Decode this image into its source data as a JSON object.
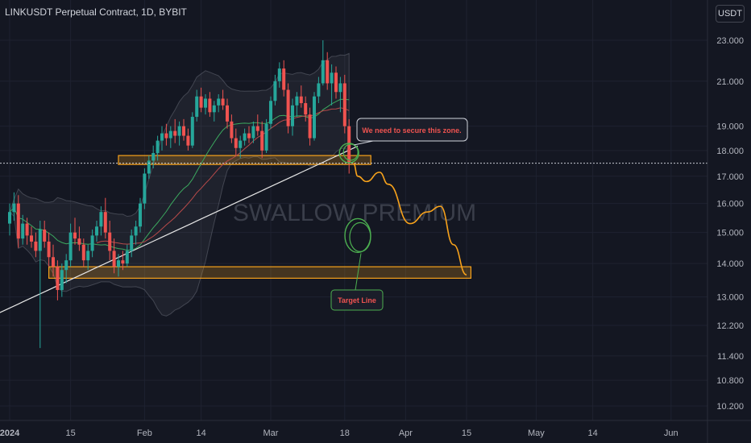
{
  "header": {
    "symbol_title": "LINKUSDT Perpetual Contract, 1D, BYBIT",
    "currency_button": "USDT"
  },
  "watermark": "SWALLOW PREMIUM",
  "annotations": {
    "zone_note": "We need to secure this zone.",
    "target_note": "Target Line"
  },
  "colors": {
    "background": "#141722",
    "up_candle": "#26a69a",
    "down_candle": "#ef5350",
    "zone_border": "#f7a21b",
    "projection": "#f7a21b",
    "ma_fast": "#3ca95f",
    "ma_mid": "#b94a4a",
    "ma_slow": "#e6e6e6",
    "circle": "#4caf50",
    "note_text": "#ef5350"
  },
  "chart_data": {
    "type": "candlestick",
    "title": "LINKUSDT Perpetual Contract, 1D, BYBIT",
    "timeframe": "1D",
    "exchange": "BYBIT",
    "y_axis_ticks": [
      23.0,
      21.0,
      19.0,
      18.0,
      17.0,
      16.0,
      15.0,
      14.0,
      13.0,
      12.2,
      11.4,
      10.8,
      10.2
    ],
    "y_tick_labels": [
      "23.000",
      "21.000",
      "19.000",
      "18.000",
      "17.000",
      "16.000",
      "15.000",
      "14.000",
      "13.000",
      "12.200",
      "11.400",
      "10.800",
      "10.200"
    ],
    "y_scale": "log",
    "ylim": [
      9.85,
      24.2
    ],
    "x_tick_labels": [
      "2024",
      "15",
      "Feb",
      "14",
      "Mar",
      "18",
      "Apr",
      "15",
      "May",
      "14",
      "Jun"
    ],
    "x_tick_dates": [
      "2024-01-01",
      "2024-01-15",
      "2024-02-01",
      "2024-02-14",
      "2024-03-01",
      "2024-03-18",
      "2024-04-01",
      "2024-04-15",
      "2024-05-01",
      "2024-05-14",
      "2024-06-01"
    ],
    "xlim": [
      "2024-01-01",
      "2024-06-01"
    ],
    "current_price": 17.5,
    "current_price_label": "17.500",
    "zones": [
      {
        "name": "resistance-zone",
        "from": "2024-01-26",
        "to": "2024-03-24",
        "low": 17.45,
        "high": 17.8
      },
      {
        "name": "target-zone",
        "from": "2024-01-10",
        "to": "2024-04-16",
        "low": 13.55,
        "high": 13.9
      }
    ],
    "projection_path": [
      {
        "date": "2024-03-20",
        "price": 17.5
      },
      {
        "date": "2024-03-21",
        "price": 17.0
      },
      {
        "date": "2024-03-23",
        "price": 16.8
      },
      {
        "date": "2024-03-26",
        "price": 17.15
      },
      {
        "date": "2024-03-28",
        "price": 16.7
      },
      {
        "date": "2024-04-02",
        "price": 15.3
      },
      {
        "date": "2024-04-06",
        "price": 15.7
      },
      {
        "date": "2024-04-09",
        "price": 15.9
      },
      {
        "date": "2024-04-12",
        "price": 14.6
      },
      {
        "date": "2024-04-15",
        "price": 13.65
      }
    ],
    "candles": [
      [
        "2024-01-01",
        15.3,
        16.0,
        14.9,
        15.7
      ],
      [
        "2024-01-02",
        15.7,
        16.4,
        15.4,
        16.0
      ],
      [
        "2024-01-03",
        16.0,
        16.3,
        14.5,
        14.8
      ],
      [
        "2024-01-04",
        14.8,
        15.6,
        14.6,
        15.3
      ],
      [
        "2024-01-05",
        15.3,
        15.5,
        14.6,
        14.9
      ],
      [
        "2024-01-06",
        14.9,
        15.2,
        14.5,
        14.7
      ],
      [
        "2024-01-07",
        14.7,
        15.0,
        14.2,
        14.4
      ],
      [
        "2024-01-08",
        14.4,
        15.4,
        11.6,
        15.1
      ],
      [
        "2024-01-09",
        15.1,
        15.4,
        14.5,
        14.7
      ],
      [
        "2024-01-10",
        14.7,
        15.0,
        13.9,
        14.2
      ],
      [
        "2024-01-11",
        14.2,
        14.6,
        13.6,
        13.9
      ],
      [
        "2024-01-12",
        13.9,
        14.1,
        12.9,
        13.2
      ],
      [
        "2024-01-13",
        13.2,
        14.0,
        13.0,
        13.8
      ],
      [
        "2024-01-14",
        13.8,
        14.3,
        13.4,
        14.1
      ],
      [
        "2024-01-15",
        14.1,
        15.3,
        13.9,
        15.0
      ],
      [
        "2024-01-16",
        15.0,
        15.5,
        14.6,
        14.8
      ],
      [
        "2024-01-17",
        14.8,
        15.2,
        14.4,
        14.6
      ],
      [
        "2024-01-18",
        14.6,
        14.8,
        13.9,
        14.1
      ],
      [
        "2024-01-19",
        14.1,
        14.6,
        13.8,
        14.4
      ],
      [
        "2024-01-20",
        14.4,
        15.1,
        14.2,
        14.9
      ],
      [
        "2024-01-21",
        14.9,
        15.4,
        14.7,
        15.2
      ],
      [
        "2024-01-22",
        15.2,
        15.9,
        14.9,
        15.7
      ],
      [
        "2024-01-23",
        15.7,
        16.2,
        14.8,
        15.0
      ],
      [
        "2024-01-24",
        15.0,
        15.4,
        14.1,
        14.4
      ],
      [
        "2024-01-25",
        14.4,
        14.8,
        13.7,
        13.9
      ],
      [
        "2024-01-26",
        13.9,
        14.3,
        13.6,
        14.1
      ],
      [
        "2024-01-27",
        14.1,
        14.4,
        13.8,
        14.0
      ],
      [
        "2024-01-28",
        14.0,
        14.6,
        13.9,
        14.4
      ],
      [
        "2024-01-29",
        14.4,
        15.1,
        14.2,
        14.9
      ],
      [
        "2024-01-30",
        14.9,
        15.4,
        14.6,
        15.2
      ],
      [
        "2024-01-31",
        15.2,
        16.2,
        15.0,
        16.0
      ],
      [
        "2024-02-01",
        16.0,
        17.3,
        15.8,
        17.1
      ],
      [
        "2024-02-02",
        17.1,
        17.8,
        16.9,
        17.6
      ],
      [
        "2024-02-03",
        17.6,
        18.2,
        17.3,
        17.9
      ],
      [
        "2024-02-04",
        17.9,
        18.6,
        17.6,
        18.4
      ],
      [
        "2024-02-05",
        18.4,
        19.0,
        18.0,
        18.7
      ],
      [
        "2024-02-06",
        18.7,
        19.1,
        18.2,
        18.5
      ],
      [
        "2024-02-07",
        18.5,
        19.0,
        18.1,
        18.8
      ],
      [
        "2024-02-08",
        18.8,
        19.3,
        18.3,
        18.6
      ],
      [
        "2024-02-09",
        18.6,
        19.2,
        18.2,
        19.0
      ],
      [
        "2024-02-10",
        19.0,
        19.3,
        18.4,
        18.6
      ],
      [
        "2024-02-11",
        18.6,
        18.9,
        18.0,
        18.2
      ],
      [
        "2024-02-12",
        18.2,
        19.6,
        18.1,
        19.4
      ],
      [
        "2024-02-13",
        19.4,
        20.6,
        19.2,
        20.3
      ],
      [
        "2024-02-14",
        20.3,
        20.7,
        19.6,
        19.8
      ],
      [
        "2024-02-15",
        19.8,
        20.4,
        19.5,
        20.2
      ],
      [
        "2024-02-16",
        20.2,
        20.5,
        19.4,
        19.6
      ],
      [
        "2024-02-17",
        19.6,
        20.1,
        19.2,
        19.9
      ],
      [
        "2024-02-18",
        19.9,
        20.4,
        19.6,
        20.2
      ],
      [
        "2024-02-19",
        20.2,
        20.6,
        19.7,
        19.9
      ],
      [
        "2024-02-20",
        19.9,
        20.2,
        18.9,
        19.2
      ],
      [
        "2024-02-21",
        19.2,
        19.5,
        18.3,
        18.5
      ],
      [
        "2024-02-22",
        18.5,
        18.9,
        17.8,
        18.1
      ],
      [
        "2024-02-23",
        18.1,
        18.6,
        17.7,
        18.4
      ],
      [
        "2024-02-24",
        18.4,
        18.9,
        18.2,
        18.7
      ],
      [
        "2024-02-25",
        18.7,
        19.0,
        18.3,
        18.5
      ],
      [
        "2024-02-26",
        18.5,
        19.2,
        18.3,
        19.0
      ],
      [
        "2024-02-27",
        19.0,
        19.5,
        18.6,
        18.8
      ],
      [
        "2024-02-28",
        18.8,
        19.2,
        17.7,
        18.0
      ],
      [
        "2024-02-29",
        18.0,
        19.3,
        17.9,
        19.1
      ],
      [
        "2024-03-01",
        19.1,
        20.3,
        18.9,
        20.1
      ],
      [
        "2024-03-02",
        20.1,
        21.3,
        19.9,
        21.0
      ],
      [
        "2024-03-03",
        21.0,
        21.9,
        20.7,
        21.6
      ],
      [
        "2024-03-04",
        21.6,
        22.0,
        20.3,
        20.6
      ],
      [
        "2024-03-05",
        20.6,
        20.9,
        18.7,
        19.0
      ],
      [
        "2024-03-06",
        19.0,
        20.2,
        18.6,
        19.9
      ],
      [
        "2024-03-07",
        19.9,
        20.5,
        19.4,
        20.3
      ],
      [
        "2024-03-08",
        20.3,
        20.8,
        19.8,
        20.0
      ],
      [
        "2024-03-09",
        20.0,
        20.3,
        19.2,
        19.5
      ],
      [
        "2024-03-10",
        19.5,
        19.8,
        18.2,
        18.5
      ],
      [
        "2024-03-11",
        18.5,
        20.5,
        18.4,
        20.3
      ],
      [
        "2024-03-12",
        20.3,
        21.2,
        20.0,
        20.9
      ],
      [
        "2024-03-13",
        20.9,
        23.0,
        20.8,
        22.0
      ],
      [
        "2024-03-14",
        22.0,
        22.4,
        20.6,
        20.9
      ],
      [
        "2024-03-15",
        20.9,
        21.8,
        19.9,
        21.4
      ],
      [
        "2024-03-16",
        21.4,
        21.7,
        20.2,
        20.5
      ],
      [
        "2024-03-17",
        20.5,
        21.2,
        19.6,
        20.9
      ],
      [
        "2024-03-18",
        20.9,
        21.3,
        18.7,
        19.0
      ],
      [
        "2024-03-19",
        19.0,
        19.3,
        17.1,
        17.5
      ]
    ]
  }
}
